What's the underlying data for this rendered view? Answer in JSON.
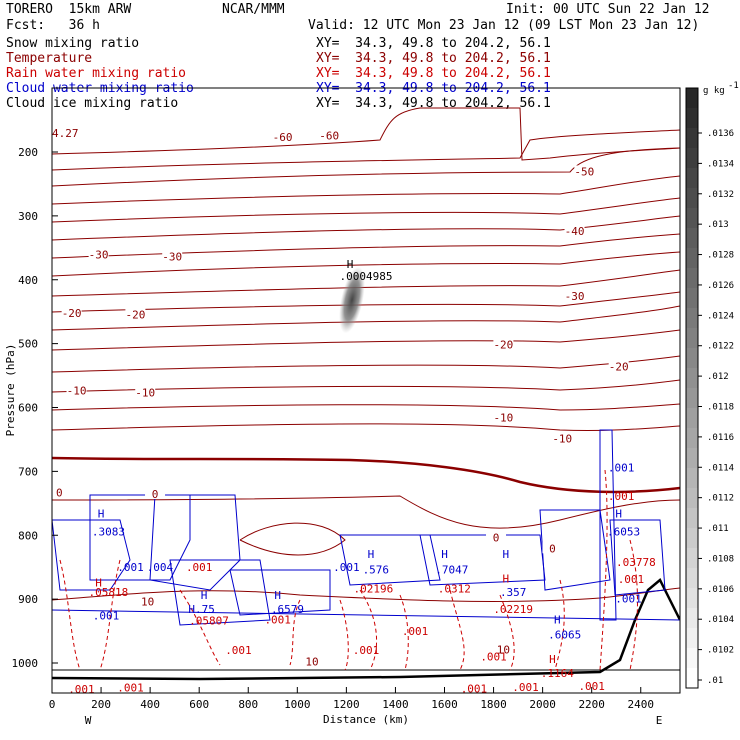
{
  "header": {
    "model": "TORERO  15km ARW",
    "center": "NCAR/MMM",
    "init": "Init: 00 UTC Sun 22 Jan 12",
    "fcst": "Fcst:   36 h",
    "valid": "Valid: 12 UTC Mon 23 Jan 12 (09 LST Mon 23 Jan 12)"
  },
  "fields": [
    {
      "name": "Snow mixing ratio",
      "xy": "XY=  34.3, 49.8 to 204.2, 56.1",
      "color": "#000000"
    },
    {
      "name": "Temperature",
      "xy": "XY=  34.3, 49.8 to 204.2, 56.1",
      "color": "#8b0000"
    },
    {
      "name": "Rain water mixing ratio",
      "xy": "XY=  34.3, 49.8 to 204.2, 56.1",
      "color": "#cc0000"
    },
    {
      "name": "Cloud water mixing ratio",
      "xy": "XY=  34.3, 49.8 to 204.2, 56.1",
      "color": "#0000cc"
    },
    {
      "name": "Cloud ice mixing ratio",
      "xy": "XY=  34.3, 49.8 to 204.2, 56.1",
      "color": "#000000"
    }
  ],
  "colorbar": {
    "unit": "g kg",
    "labels": [
      ".0136",
      ".0134",
      ".0132",
      ".013",
      ".0128",
      ".0126",
      ".0124",
      ".0122",
      ".012",
      ".0118",
      ".0116",
      ".0114",
      ".0112",
      ".011",
      ".0108",
      ".0106",
      ".0104",
      ".0102",
      ".01"
    ]
  },
  "annotations": {
    "corner_value": "4.27",
    "snow_max_h": "H",
    "snow_max": ".0004985",
    "west": "W",
    "east": "E"
  },
  "chart_data": {
    "type": "cross-section",
    "xlabel": "Distance (km)",
    "ylabel": "Pressure (hPa)",
    "x_ticks": [
      "0",
      "200",
      "400",
      "600",
      "800",
      "1000",
      "1200",
      "1400",
      "1600",
      "1800",
      "2000",
      "2200",
      "2400"
    ],
    "y_ticks": [
      "200",
      "300",
      "400",
      "500",
      "600",
      "700",
      "800",
      "900",
      "1000"
    ],
    "xlim": [
      0,
      2560
    ],
    "ylim": [
      1050,
      100
    ],
    "temperature_contours": [
      -60,
      -50,
      -40,
      -30,
      -20,
      -10,
      0,
      10
    ],
    "temperature_labels": [
      {
        "text": "-60",
        "x": 940,
        "p": 178
      },
      {
        "text": "-60",
        "x": 1130,
        "p": 176
      },
      {
        "text": "-50",
        "x": 2170,
        "p": 232
      },
      {
        "text": "-40",
        "x": 2130,
        "p": 325
      },
      {
        "text": "-30",
        "x": 190,
        "p": 362
      },
      {
        "text": "-30",
        "x": 490,
        "p": 365
      },
      {
        "text": "-30",
        "x": 2130,
        "p": 427
      },
      {
        "text": "-20",
        "x": 80,
        "p": 454
      },
      {
        "text": "-20",
        "x": 340,
        "p": 456
      },
      {
        "text": "-20",
        "x": 1840,
        "p": 503
      },
      {
        "text": "-20",
        "x": 2310,
        "p": 537
      },
      {
        "text": "-10",
        "x": 100,
        "p": 575
      },
      {
        "text": "-10",
        "x": 380,
        "p": 578
      },
      {
        "text": "-10",
        "x": 1840,
        "p": 617
      },
      {
        "text": "-10",
        "x": 2080,
        "p": 650
      },
      {
        "text": "0",
        "x": 30,
        "p": 735
      },
      {
        "text": "0",
        "x": 420,
        "p": 737
      },
      {
        "text": "0",
        "x": 1810,
        "p": 805
      },
      {
        "text": "0",
        "x": 2040,
        "p": 822
      }
    ],
    "hydrometeor_labels": [
      {
        "text": "H",
        "x": 200,
        "p": 772,
        "color": "#0000cc"
      },
      {
        "text": ".3083",
        "x": 230,
        "p": 800,
        "color": "#0000cc"
      },
      {
        "text": ".001",
        "x": 320,
        "p": 856,
        "color": "#0000cc"
      },
      {
        "text": ".004",
        "x": 440,
        "p": 856,
        "color": "#0000cc"
      },
      {
        "text": ".001",
        "x": 600,
        "p": 856,
        "color": "#cc0000"
      },
      {
        "text": "H",
        "x": 190,
        "p": 880,
        "color": "#cc0000"
      },
      {
        "text": ".05818",
        "x": 230,
        "p": 895,
        "color": "#cc0000"
      },
      {
        "text": ".001",
        "x": 220,
        "p": 932,
        "color": "#0000cc"
      },
      {
        "text": "H",
        "x": 620,
        "p": 900,
        "color": "#0000cc"
      },
      {
        "text": "H.75",
        "x": 610,
        "p": 922,
        "color": "#0000cc"
      },
      {
        "text": ".05807",
        "x": 640,
        "p": 940,
        "color": "#cc0000"
      },
      {
        "text": "H",
        "x": 920,
        "p": 900,
        "color": "#0000cc"
      },
      {
        "text": ".6579",
        "x": 960,
        "p": 922,
        "color": "#0000cc"
      },
      {
        "text": ".001",
        "x": 920,
        "p": 938,
        "color": "#cc0000"
      },
      {
        "text": ".001",
        "x": 1200,
        "p": 856,
        "color": "#0000cc"
      },
      {
        "text": "H",
        "x": 1300,
        "p": 836,
        "color": "#0000cc"
      },
      {
        "text": ".576",
        "x": 1320,
        "p": 860,
        "color": "#0000cc"
      },
      {
        "text": ".02196",
        "x": 1310,
        "p": 890,
        "color": "#cc0000"
      },
      {
        "text": "H",
        "x": 1600,
        "p": 836,
        "color": "#0000cc"
      },
      {
        "text": ".7047",
        "x": 1630,
        "p": 860,
        "color": "#0000cc"
      },
      {
        "text": ".0312",
        "x": 1640,
        "p": 890,
        "color": "#cc0000"
      },
      {
        "text": "H",
        "x": 1850,
        "p": 836,
        "color": "#0000cc"
      },
      {
        "text": "H",
        "x": 1850,
        "p": 874,
        "color": "#cc0000"
      },
      {
        "text": ".357",
        "x": 1880,
        "p": 895,
        "color": "#0000cc"
      },
      {
        "text": ".02219",
        "x": 1880,
        "p": 922,
        "color": "#cc0000"
      },
      {
        "text": "H",
        "x": 2060,
        "p": 938,
        "color": "#0000cc"
      },
      {
        "text": ".6065",
        "x": 2090,
        "p": 962,
        "color": "#0000cc"
      },
      {
        "text": "H",
        "x": 2040,
        "p": 1000,
        "color": "#cc0000"
      },
      {
        "text": ".1164",
        "x": 2060,
        "p": 1022,
        "color": "#cc0000"
      },
      {
        "text": "H",
        "x": 2310,
        "p": 772,
        "color": "#0000cc"
      },
      {
        "text": ".6053",
        "x": 2330,
        "p": 800,
        "color": "#0000cc"
      },
      {
        "text": ".001",
        "x": 2320,
        "p": 700,
        "color": "#0000cc"
      },
      {
        "text": ".001",
        "x": 2320,
        "p": 745,
        "color": "#cc0000"
      },
      {
        "text": ".03778",
        "x": 2380,
        "p": 848,
        "color": "#cc0000"
      },
      {
        "text": ".001",
        "x": 2360,
        "p": 875,
        "color": "#cc0000"
      },
      {
        "text": ".001",
        "x": 2350,
        "p": 905,
        "color": "#0000cc"
      },
      {
        "text": ".001",
        "x": 760,
        "p": 986,
        "color": "#cc0000"
      },
      {
        "text": ".001",
        "x": 1280,
        "p": 986,
        "color": "#cc0000"
      },
      {
        "text": ".001",
        "x": 1480,
        "p": 956,
        "color": "#cc0000"
      },
      {
        "text": ".001",
        "x": 1800,
        "p": 996,
        "color": "#cc0000"
      },
      {
        "text": ".001",
        "x": 120,
        "p": 1047,
        "color": "#cc0000"
      },
      {
        "text": ".001",
        "x": 320,
        "p": 1045,
        "color": "#cc0000"
      },
      {
        "text": ".001",
        "x": 1720,
        "p": 1046,
        "color": "#cc0000"
      },
      {
        "text": ".001",
        "x": 1930,
        "p": 1044,
        "color": "#cc0000"
      },
      {
        "text": ".001",
        "x": 2200,
        "p": 1042,
        "color": "#cc0000"
      },
      {
        "text": "10",
        "x": 390,
        "p": 910,
        "color": "#8b0000"
      },
      {
        "text": "10",
        "x": 1060,
        "p": 1004,
        "color": "#8b0000"
      },
      {
        "text": "10",
        "x": 1840,
        "p": 985,
        "color": "#8b0000"
      }
    ]
  }
}
